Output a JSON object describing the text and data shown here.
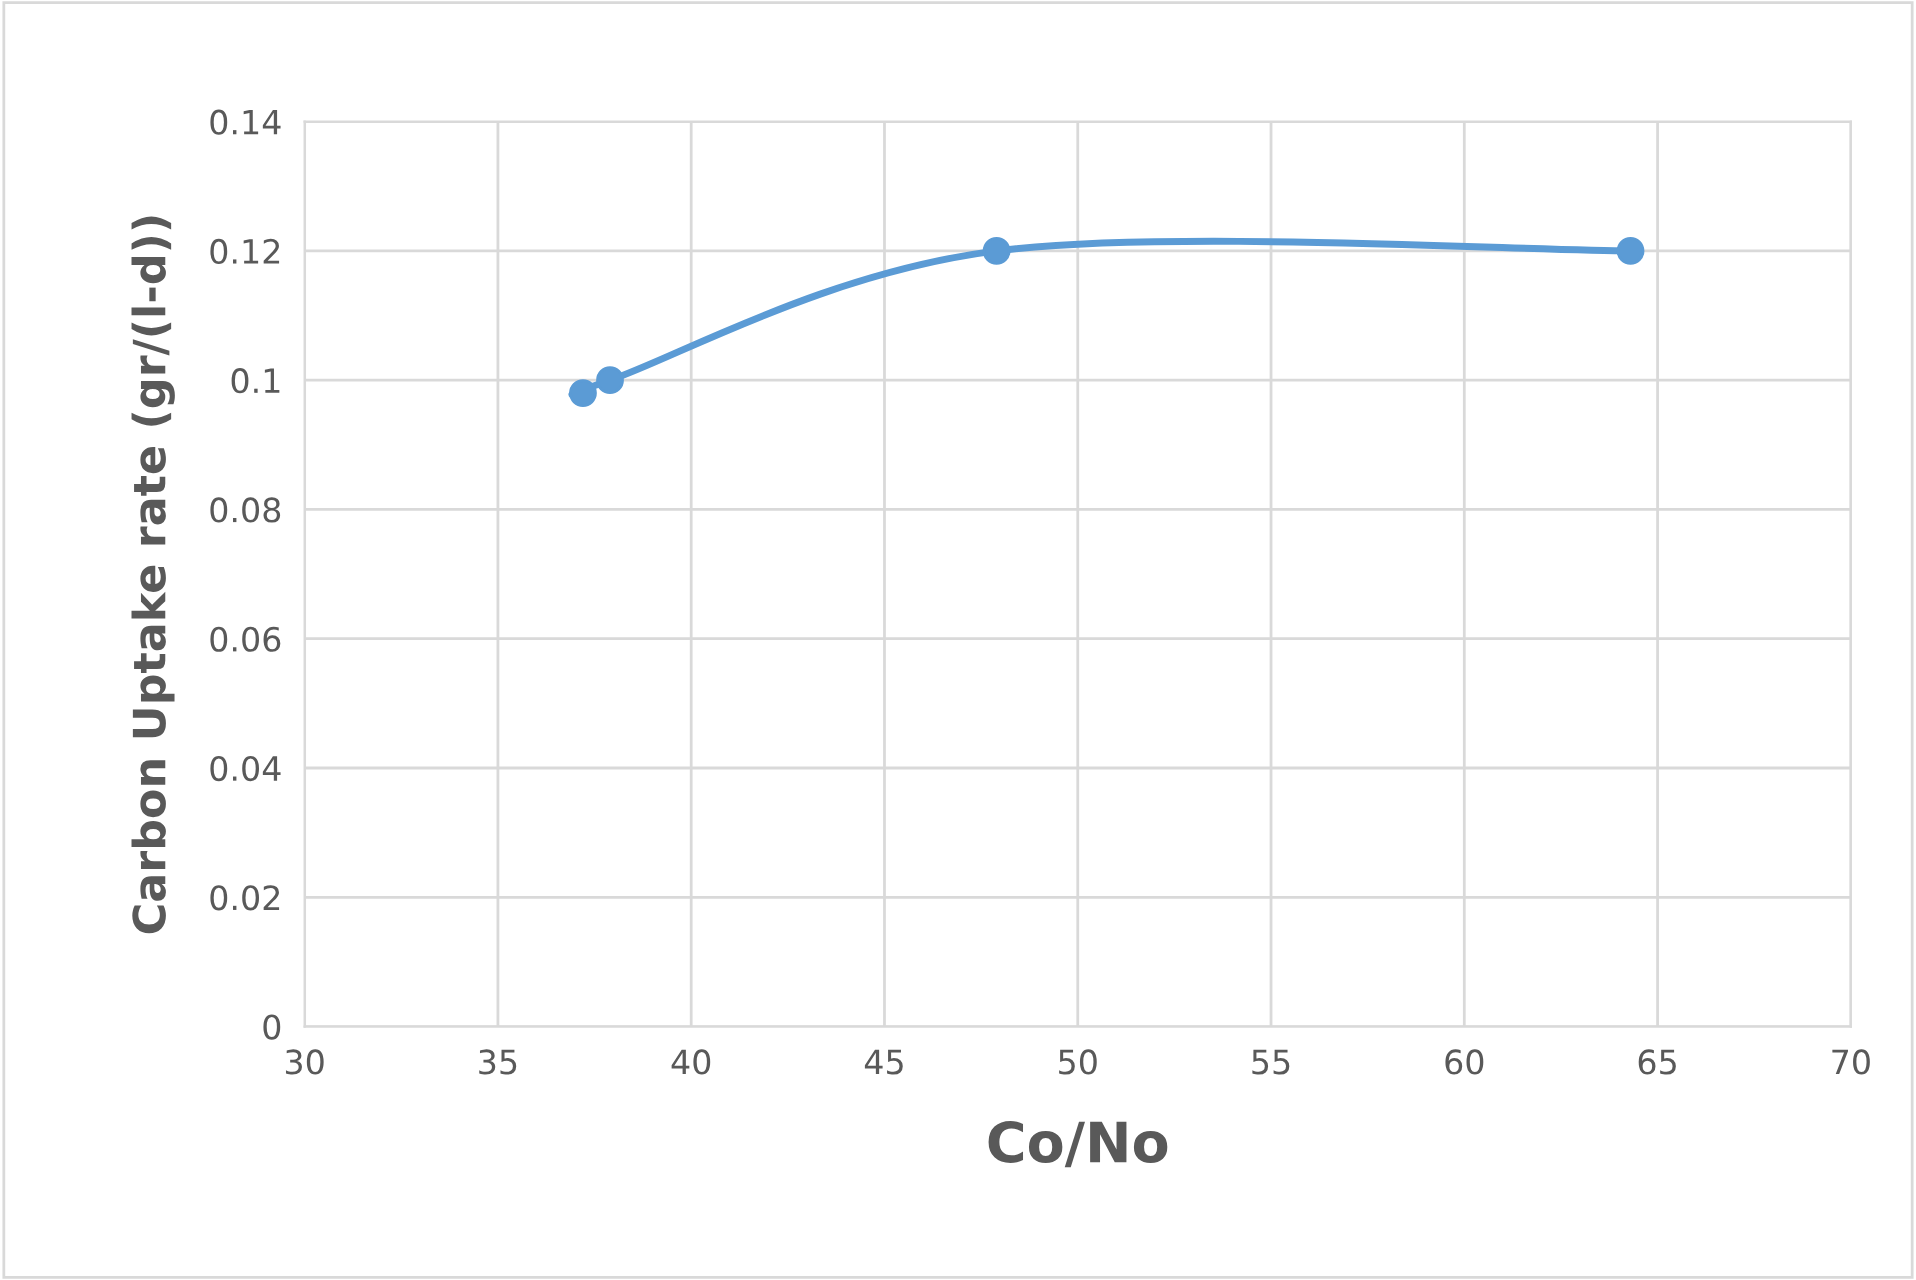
{
  "chart_data": {
    "type": "line",
    "xlabel": "Co/No",
    "ylabel": "Carbon Uptake rate (gr/(l-d))",
    "x": [
      37.2,
      37.9,
      47.9,
      64.3
    ],
    "series": [
      {
        "color": "#5b9bd5",
        "values": [
          0.098,
          0.1,
          0.12,
          0.12
        ]
      }
    ],
    "xlim": [
      30,
      70
    ],
    "xticks": [
      30,
      35,
      40,
      45,
      50,
      55,
      60,
      65,
      70
    ],
    "ylim": [
      0,
      0.14
    ],
    "yticks": [
      {
        "value": 0,
        "label": "0"
      },
      0.02,
      0.04,
      0.06,
      0.08,
      {
        "value": 0.1,
        "label": "0.1"
      },
      0.12,
      0.14
    ],
    "grid": true,
    "marker": "circle",
    "line_style": "solid"
  }
}
